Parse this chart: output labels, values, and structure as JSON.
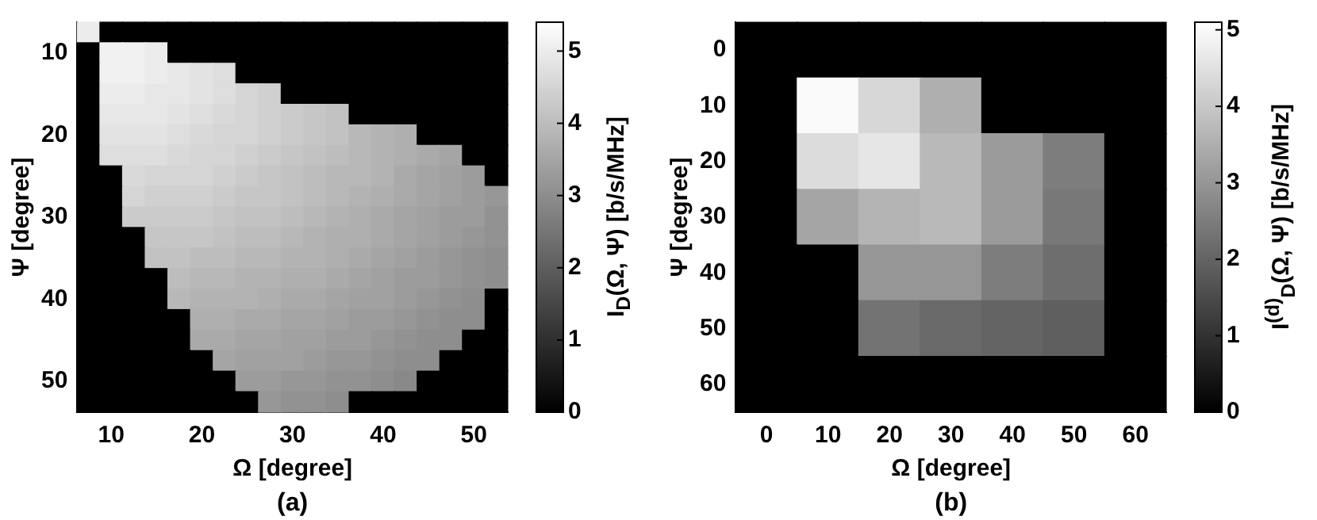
{
  "chart_data": [
    {
      "type": "heatmap",
      "xlabel": "Ω [degree]",
      "ylabel": "Ψ [degree]",
      "clabel": "I$_{D}$(Ω, Ψ) [b/s/MHz]",
      "annotations": [
        "(a)"
      ],
      "categories": [
        null,
        "10",
        null,
        null,
        null,
        "20",
        null,
        null,
        null,
        "30",
        null,
        null,
        null,
        "40",
        null,
        null,
        null,
        "50",
        null
      ],
      "y_categories": [
        null,
        "10",
        null,
        null,
        null,
        "20",
        null,
        null,
        null,
        "30",
        null,
        null,
        null,
        "40",
        null,
        null,
        null,
        "50",
        null
      ],
      "cells": [
        [
          5.0,
          0,
          0,
          0,
          0,
          0,
          0,
          0,
          0,
          0,
          0,
          0,
          0,
          0,
          0,
          0,
          0,
          0,
          0
        ],
        [
          0,
          5.1,
          5.1,
          5.0,
          0,
          0,
          0,
          0,
          0,
          0,
          0,
          0,
          0,
          0,
          0,
          0,
          0,
          0,
          0
        ],
        [
          0,
          5.1,
          5.1,
          5.0,
          4.9,
          4.8,
          4.7,
          0,
          0,
          0,
          0,
          0,
          0,
          0,
          0,
          0,
          0,
          0,
          0
        ],
        [
          0,
          5.0,
          5.0,
          4.9,
          4.9,
          4.8,
          4.7,
          4.5,
          4.4,
          0,
          0,
          0,
          0,
          0,
          0,
          0,
          0,
          0,
          0
        ],
        [
          0,
          4.9,
          4.9,
          4.9,
          4.8,
          4.7,
          4.6,
          4.5,
          4.4,
          4.3,
          4.2,
          4.1,
          0,
          0,
          0,
          0,
          0,
          0,
          0
        ],
        [
          0,
          4.8,
          4.8,
          4.8,
          4.7,
          4.6,
          4.5,
          4.5,
          4.4,
          4.3,
          4.2,
          4.1,
          3.9,
          3.8,
          3.7,
          0,
          0,
          0,
          0
        ],
        [
          0,
          4.7,
          4.7,
          4.7,
          4.6,
          4.5,
          4.5,
          4.4,
          4.3,
          4.2,
          4.1,
          4.0,
          3.9,
          3.8,
          3.7,
          3.6,
          3.5,
          0,
          0
        ],
        [
          0,
          0,
          4.6,
          4.5,
          4.5,
          4.5,
          4.4,
          4.3,
          4.2,
          4.1,
          4.0,
          3.9,
          3.9,
          3.8,
          3.6,
          3.5,
          3.4,
          3.3,
          0
        ],
        [
          0,
          0,
          4.5,
          4.4,
          4.4,
          4.4,
          4.3,
          4.2,
          4.2,
          4.1,
          4.0,
          3.9,
          3.8,
          3.7,
          3.6,
          3.5,
          3.4,
          3.3,
          3.2
        ],
        [
          0,
          0,
          4.3,
          4.3,
          4.3,
          4.3,
          4.2,
          4.1,
          4.1,
          4.0,
          3.9,
          3.8,
          3.7,
          3.6,
          3.5,
          3.4,
          3.3,
          3.3,
          3.1
        ],
        [
          0,
          0,
          0,
          4.2,
          4.2,
          4.2,
          4.1,
          4.0,
          4.0,
          3.9,
          3.8,
          3.7,
          3.7,
          3.6,
          3.5,
          3.4,
          3.3,
          3.2,
          3.1
        ],
        [
          0,
          0,
          0,
          4.1,
          4.1,
          4.0,
          4.0,
          3.9,
          3.9,
          3.8,
          3.8,
          3.7,
          3.6,
          3.5,
          3.4,
          3.3,
          3.2,
          3.1,
          3.0
        ],
        [
          0,
          0,
          0,
          0,
          4.0,
          3.9,
          3.9,
          3.8,
          3.8,
          3.7,
          3.7,
          3.6,
          3.5,
          3.4,
          3.3,
          3.3,
          3.2,
          3.1,
          3.0
        ],
        [
          0,
          0,
          0,
          0,
          3.9,
          3.8,
          3.8,
          3.8,
          3.7,
          3.6,
          3.6,
          3.5,
          3.4,
          3.4,
          3.3,
          3.2,
          3.1,
          3.0,
          0
        ],
        [
          0,
          0,
          0,
          0,
          0,
          3.7,
          3.7,
          3.6,
          3.6,
          3.5,
          3.5,
          3.4,
          3.3,
          3.3,
          3.2,
          3.1,
          3.0,
          3.0,
          0
        ],
        [
          0,
          0,
          0,
          0,
          0,
          3.6,
          3.6,
          3.5,
          3.5,
          3.4,
          3.4,
          3.3,
          3.3,
          3.2,
          3.1,
          3.0,
          3.0,
          0,
          0
        ],
        [
          0,
          0,
          0,
          0,
          0,
          0,
          3.5,
          3.4,
          3.4,
          3.4,
          3.3,
          3.2,
          3.2,
          3.1,
          3.0,
          3.0,
          0,
          0,
          0
        ],
        [
          0,
          0,
          0,
          0,
          0,
          0,
          0,
          3.3,
          3.3,
          3.2,
          3.2,
          3.1,
          3.1,
          3.0,
          2.9,
          0,
          0,
          0,
          0
        ],
        [
          0,
          0,
          0,
          0,
          0,
          0,
          0,
          0,
          3.2,
          3.1,
          3.1,
          3.0,
          0,
          0,
          0,
          0,
          0,
          0,
          0
        ]
      ],
      "clim": [
        0,
        5.4
      ],
      "cticks": [
        0,
        1,
        2,
        3,
        4,
        5
      ]
    },
    {
      "type": "heatmap",
      "xlabel": "Ω [degree]",
      "ylabel": "Ψ [degree]",
      "clabel": "I$^{(d)}$$_{D}$(Ω, Ψ) [b/s/MHz]",
      "annotations": [
        "(b)"
      ],
      "categories": [
        "0",
        "10",
        "20",
        "30",
        "40",
        "50",
        "60"
      ],
      "y_categories": [
        "0",
        "10",
        "20",
        "30",
        "40",
        "50",
        "60"
      ],
      "cells": [
        [
          0,
          0,
          0,
          0,
          0,
          0,
          0
        ],
        [
          0,
          5.0,
          4.3,
          3.5,
          0,
          0,
          0
        ],
        [
          0,
          4.4,
          4.6,
          3.7,
          3.1,
          2.5,
          0
        ],
        [
          0,
          3.3,
          3.6,
          3.7,
          3.1,
          2.4,
          0
        ],
        [
          0,
          0,
          3.0,
          3.0,
          2.5,
          2.2,
          0
        ],
        [
          0,
          0,
          2.3,
          2.1,
          2.0,
          1.9,
          0
        ],
        [
          0,
          0,
          0,
          0,
          0,
          0,
          0
        ]
      ],
      "clim": [
        0,
        5.1
      ],
      "cticks": [
        0,
        1,
        2,
        3,
        4,
        5
      ]
    }
  ]
}
